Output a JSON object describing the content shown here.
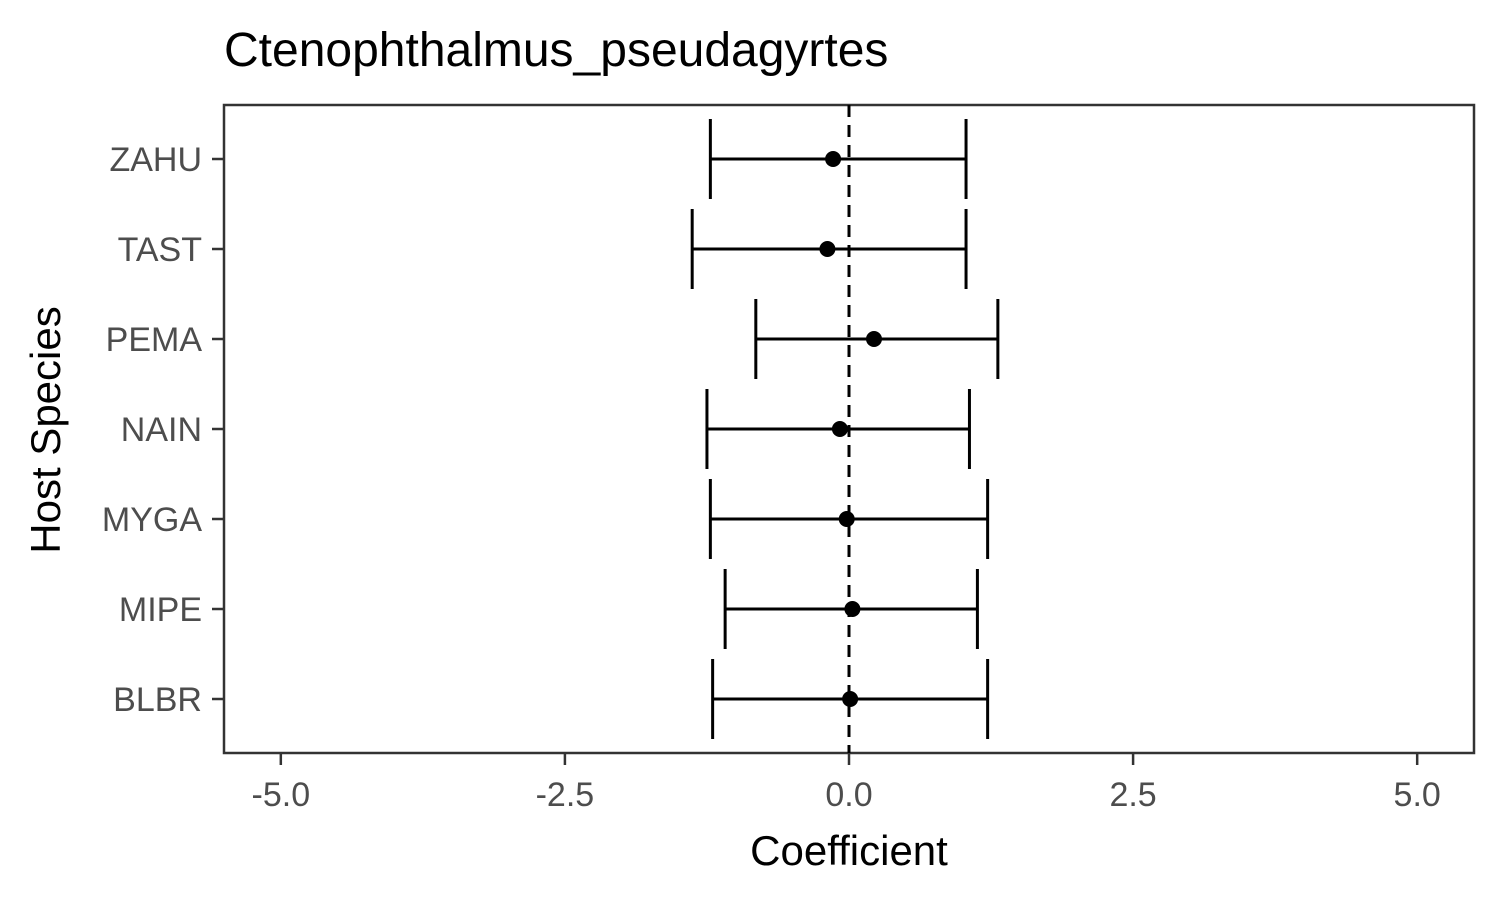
{
  "chart_data": {
    "type": "scatter",
    "subtype": "coefficient-errorbar",
    "title": "Ctenophthalmus_pseudagyrtes",
    "xlabel": "Coefficient",
    "ylabel": "Host Species",
    "xlim": [
      -5.5,
      5.5
    ],
    "x_ticks": [
      "-5.0",
      "-2.5",
      "0.0",
      "2.5",
      "5.0"
    ],
    "x_tick_values": [
      -5,
      -2.5,
      0,
      2.5,
      5
    ],
    "reference_line": {
      "x": 0,
      "style": "dashed"
    },
    "grid": false,
    "legend": "none",
    "categories": [
      "ZAHU",
      "TAST",
      "PEMA",
      "NAIN",
      "MYGA",
      "MIPE",
      "BLBR"
    ],
    "series": [
      {
        "estimate": [
          -0.14,
          -0.19,
          0.22,
          -0.08,
          -0.02,
          0.03,
          0.01
        ],
        "lower": [
          -1.22,
          -1.38,
          -0.82,
          -1.25,
          -1.22,
          -1.09,
          -1.2
        ],
        "upper": [
          1.03,
          1.03,
          1.31,
          1.06,
          1.22,
          1.13,
          1.22
        ]
      }
    ],
    "colors": {
      "points": "#000000",
      "errorbars": "#000000",
      "panel_border": "#333333",
      "tick_label": "#4d4d4d",
      "background": "#ffffff"
    }
  }
}
